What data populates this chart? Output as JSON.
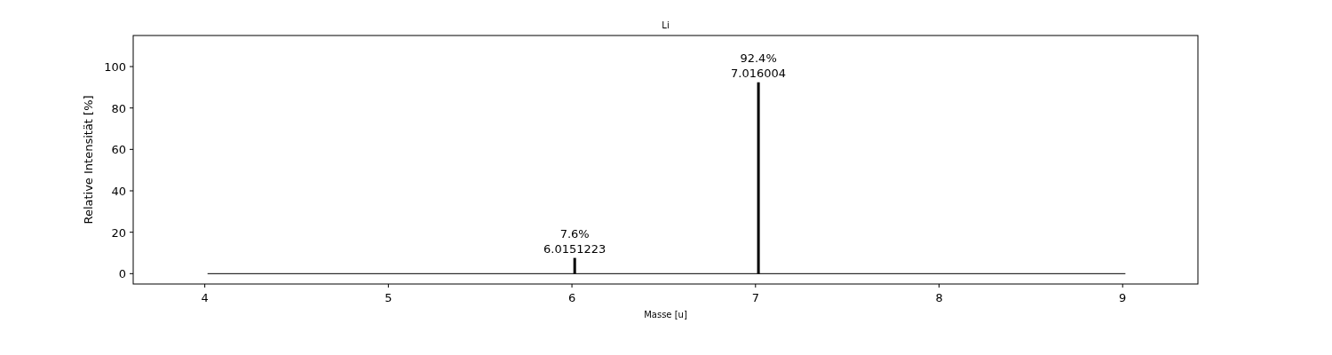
{
  "chart_data": {
    "type": "bar",
    "title": "Li",
    "xlabel": "Masse [u]",
    "ylabel": "Relative Intensität [%]",
    "xlim": [
      3.61,
      9.41
    ],
    "xticks": [
      4,
      5,
      6,
      7,
      8,
      9
    ],
    "ylim": [
      -5,
      115
    ],
    "yticks": [
      0,
      20,
      40,
      60,
      80,
      100
    ],
    "grid": false,
    "series": [
      {
        "type": "line",
        "color": "#000000",
        "x": [
          4.015,
          9.015
        ],
        "values": [
          0,
          0
        ]
      },
      {
        "color": "#000000",
        "x": [
          6.0151223,
          7.016004
        ],
        "values": [
          7.6,
          92.4
        ],
        "value_labels": [
          "7.6%\n6.0151223",
          "92.4%\n7.016004"
        ]
      }
    ]
  }
}
